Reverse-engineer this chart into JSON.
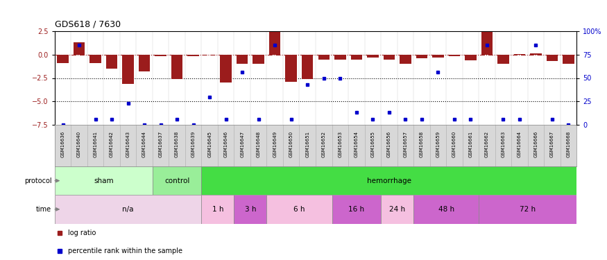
{
  "title": "GDS618 / 7630",
  "samples": [
    "GSM16636",
    "GSM16640",
    "GSM16641",
    "GSM16642",
    "GSM16643",
    "GSM16644",
    "GSM16637",
    "GSM16638",
    "GSM16639",
    "GSM16645",
    "GSM16646",
    "GSM16647",
    "GSM16648",
    "GSM16649",
    "GSM16650",
    "GSM16651",
    "GSM16652",
    "GSM16653",
    "GSM16654",
    "GSM16655",
    "GSM16656",
    "GSM16657",
    "GSM16658",
    "GSM16659",
    "GSM16660",
    "GSM16661",
    "GSM16662",
    "GSM16663",
    "GSM16664",
    "GSM16666",
    "GSM16667",
    "GSM16668"
  ],
  "log_ratio": [
    -0.9,
    1.3,
    -0.9,
    -1.5,
    -3.1,
    -1.8,
    -0.15,
    -2.6,
    -0.2,
    -0.05,
    -3.0,
    -1.0,
    -1.0,
    2.4,
    -2.9,
    -2.6,
    -0.5,
    -0.5,
    -0.5,
    -0.3,
    -0.5,
    -1.0,
    -0.4,
    -0.3,
    -0.15,
    -0.6,
    2.4,
    -1.0,
    0.05,
    0.1,
    -0.7,
    -1.0
  ],
  "percentile": [
    0,
    85,
    6,
    6,
    23,
    0,
    0,
    6,
    0,
    30,
    6,
    56,
    6,
    85,
    6,
    43,
    50,
    50,
    13,
    6,
    13,
    6,
    6,
    56,
    6,
    6,
    85,
    6,
    6,
    85,
    6,
    0
  ],
  "bar_color": "#9B1C1C",
  "dot_color": "#0000CC",
  "ylim_left": [
    -7.5,
    2.5
  ],
  "ylim_right": [
    0,
    100
  ],
  "dotted_lines": [
    -2.5,
    -5.0
  ],
  "protocol_groups": [
    {
      "label": "sham",
      "start": 0,
      "end": 5,
      "color": "#CCFFCC"
    },
    {
      "label": "control",
      "start": 6,
      "end": 8,
      "color": "#99EE99"
    },
    {
      "label": "hemorrhage",
      "start": 9,
      "end": 31,
      "color": "#44DD44"
    }
  ],
  "time_groups": [
    {
      "label": "n/a",
      "start": 0,
      "end": 8,
      "color": "#EED5E8"
    },
    {
      "label": "1 h",
      "start": 9,
      "end": 10,
      "color": "#F5C0E0"
    },
    {
      "label": "3 h",
      "start": 11,
      "end": 12,
      "color": "#CC66CC"
    },
    {
      "label": "6 h",
      "start": 13,
      "end": 16,
      "color": "#F5C0E0"
    },
    {
      "label": "16 h",
      "start": 17,
      "end": 19,
      "color": "#CC66CC"
    },
    {
      "label": "24 h",
      "start": 20,
      "end": 21,
      "color": "#F5C0E0"
    },
    {
      "label": "48 h",
      "start": 22,
      "end": 25,
      "color": "#CC66CC"
    },
    {
      "label": "72 h",
      "start": 26,
      "end": 31,
      "color": "#CC66CC"
    }
  ],
  "right_ytick_labels": [
    "0",
    "25",
    "50",
    "75",
    "100%"
  ],
  "right_ytick_values": [
    0,
    25,
    50,
    75,
    100
  ],
  "background_color": "#ffffff",
  "xtick_box_color": "#D8D8D8"
}
